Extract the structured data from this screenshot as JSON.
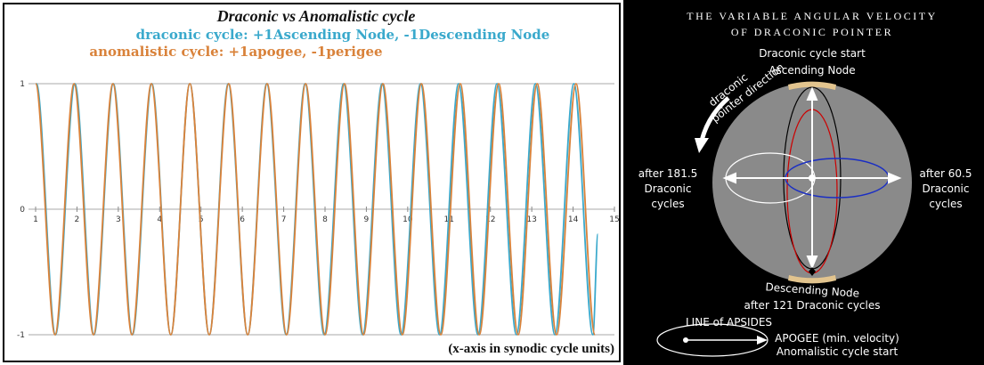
{
  "chart_data": {
    "type": "line",
    "title": "Draconic vs Anomalistic cycle",
    "x_label": "(x-axis in synodic cycle units)",
    "xlim": [
      1,
      15
    ],
    "ylim": [
      -1,
      1
    ],
    "xticks": [
      1,
      2,
      3,
      4,
      5,
      6,
      7,
      8,
      9,
      10,
      11,
      12,
      13,
      14,
      15
    ],
    "yticks": [
      -1,
      0,
      1
    ],
    "grid": true,
    "series": [
      {
        "name": "draconic cycle: +1Ascending Node, -1Descending Node",
        "color": "#3aa9cc",
        "x": [
          1.02,
          1.48,
          1.95,
          2.41,
          2.88,
          3.34,
          3.81,
          4.27,
          4.73,
          5.2,
          5.66,
          6.13,
          6.59,
          7.06,
          7.52,
          7.98,
          8.45,
          8.91,
          9.38,
          9.84,
          10.31,
          10.77,
          11.23,
          11.7,
          12.16,
          12.63,
          13.09,
          13.56,
          14.02,
          14.48,
          14.6
        ],
        "values": [
          1,
          -1,
          1,
          -1,
          1,
          -1,
          1,
          -1,
          1,
          -1,
          1,
          -1,
          1,
          -1,
          1,
          -1,
          1,
          -1,
          1,
          -1,
          1,
          -1,
          1,
          -1,
          1,
          -1,
          1,
          -1,
          1,
          -1,
          -0.2
        ]
      },
      {
        "name": "anomalistic cycle: +1apogee, -1perigee",
        "color": "#d9823a",
        "x": [
          1,
          1.47,
          1.93,
          2.4,
          2.87,
          3.33,
          3.8,
          4.27,
          4.73,
          5.2,
          5.67,
          6.13,
          6.6,
          7.07,
          7.53,
          8,
          8.47,
          8.93,
          9.4,
          9.87,
          10.33,
          10.8,
          11.27,
          11.73,
          12.2,
          12.67,
          13.13,
          13.6,
          14.07,
          14.53
        ],
        "values": [
          1,
          -1,
          1,
          -1,
          1,
          -1,
          1,
          -1,
          1,
          -1,
          1,
          -1,
          1,
          -1,
          1,
          -1,
          1,
          -1,
          1,
          -1,
          1,
          -1,
          1,
          -1,
          1,
          -1,
          1,
          -1,
          1,
          -1
        ]
      }
    ]
  },
  "diagram": {
    "title_lines": [
      "THE VARIABLE ANGULAR VELOCITY",
      "OF DRACONIC POINTER"
    ],
    "top_labels": [
      "Draconic cycle start",
      "Ascending Node"
    ],
    "pointer_direction": [
      "draconic",
      "pointer direction"
    ],
    "left_label": [
      "after 181.5",
      "Draconic",
      "cycles"
    ],
    "right_label": [
      "after 60.5",
      "Draconic",
      "cycles"
    ],
    "bottom_labels": [
      "Descending Node",
      "after 121 Draconic cycles"
    ],
    "apsides": {
      "label": "LINE of APSIDES",
      "apogee": "APOGEE (min. velocity)",
      "note": "Anomalistic cycle start"
    }
  }
}
